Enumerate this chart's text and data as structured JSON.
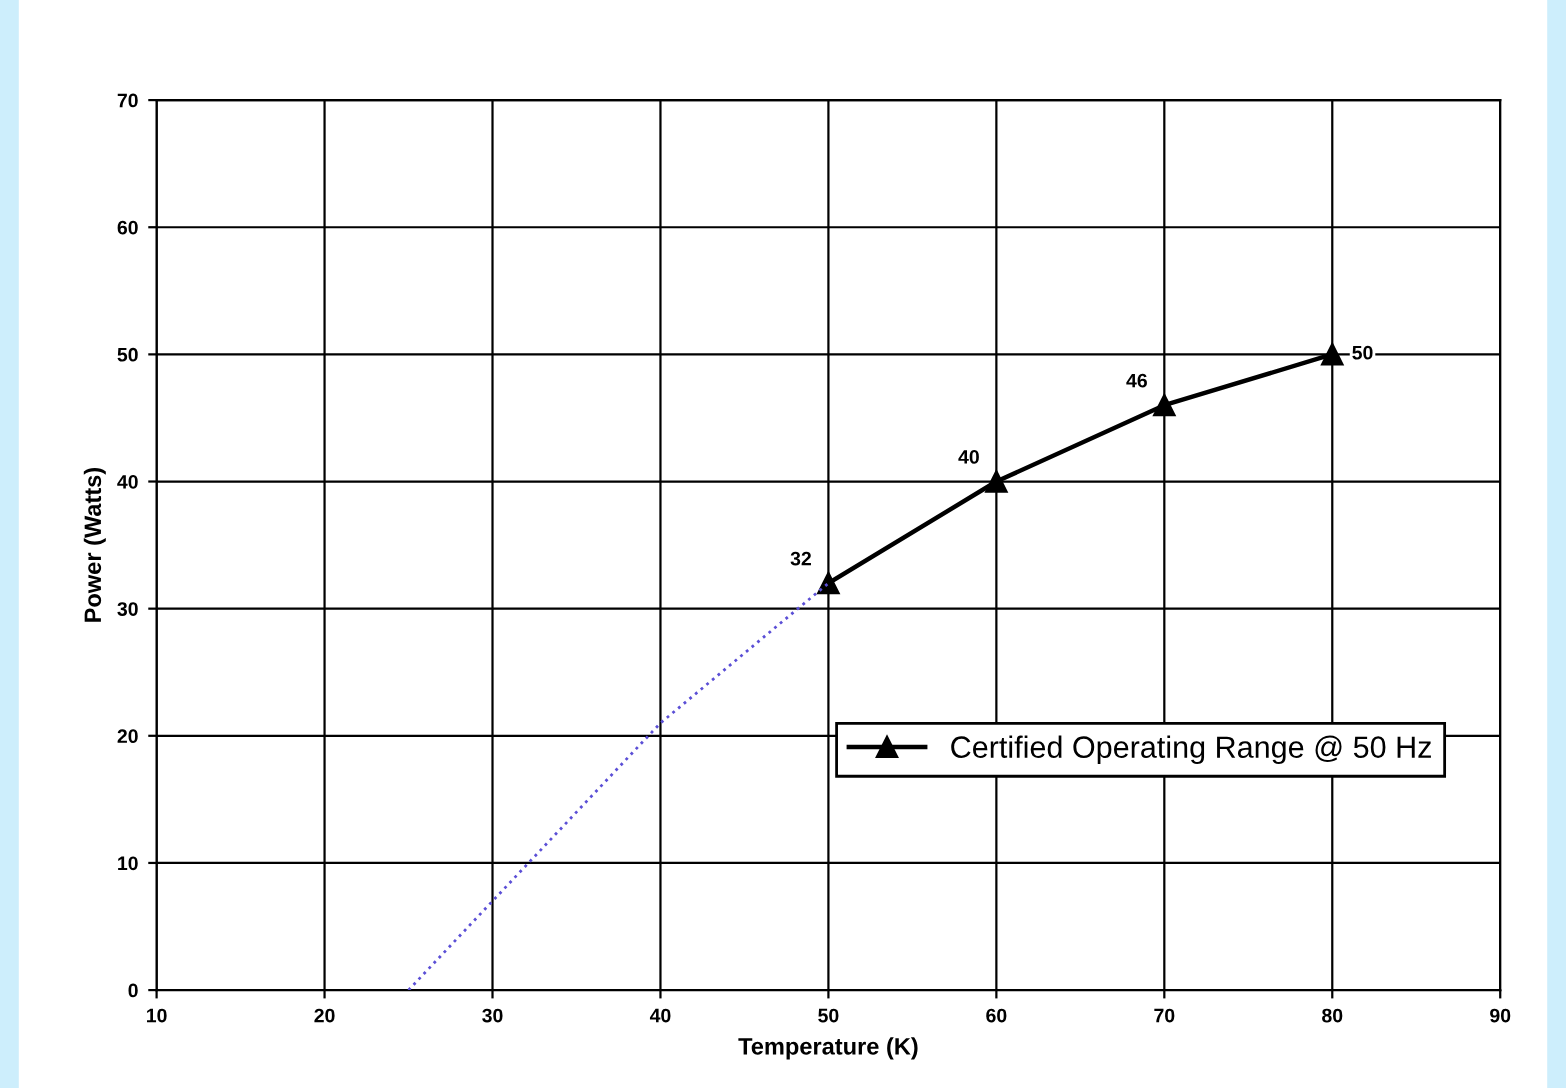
{
  "chart_data": {
    "type": "line",
    "xlabel": "Temperature (K)",
    "ylabel": "Power (Watts)",
    "xlim": [
      10,
      90
    ],
    "xticks": [
      10,
      20,
      30,
      40,
      50,
      60,
      70,
      80,
      90
    ],
    "ylim": [
      0,
      70
    ],
    "yticks": [
      0,
      10,
      20,
      30,
      40,
      50,
      60,
      70
    ],
    "grid": true,
    "legend": "right",
    "series": [
      {
        "name": "Certified Operating Range @ 50 Hz",
        "color": "#000000",
        "x": [
          50,
          60,
          70,
          80
        ],
        "values": [
          32,
          40,
          46,
          50
        ],
        "marker": "triangle",
        "line_style": "solid",
        "value_labels": [
          "32",
          "40",
          "46",
          "50"
        ]
      },
      {
        "color": "#5b4fd6",
        "x": [
          25,
          30,
          40,
          50
        ],
        "values": [
          0,
          7,
          21,
          32
        ],
        "marker": "none",
        "line_style": "dotted"
      }
    ]
  }
}
